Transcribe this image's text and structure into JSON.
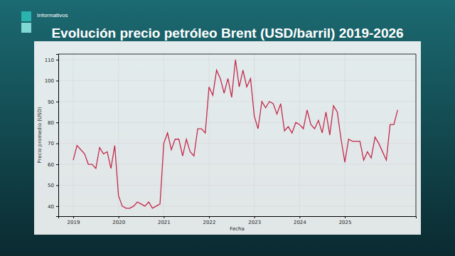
{
  "chart_data": {
    "type": "line",
    "title": "Evolución precio petróleo Brent (USD/barril) 2019-2026",
    "annotations": [
      "Informativos"
    ],
    "x_label": "Fecha",
    "y_label": "Precio promedio (USD)",
    "color": "#c42a4c",
    "grid": true,
    "xlim": [
      2018.67,
      2026.57
    ],
    "xticks": [
      2019,
      2020,
      2021,
      2022,
      2023,
      2024,
      2025
    ],
    "ylim": [
      35.2,
      112.7
    ],
    "yticks": [
      40,
      50,
      60,
      70,
      80,
      90,
      100,
      110
    ],
    "x": [
      2019.0,
      2019.083,
      2019.167,
      2019.25,
      2019.333,
      2019.417,
      2019.5,
      2019.583,
      2019.667,
      2019.75,
      2019.833,
      2019.917,
      2020.0,
      2020.083,
      2020.167,
      2020.25,
      2020.333,
      2020.417,
      2020.5,
      2020.583,
      2020.667,
      2020.75,
      2020.833,
      2020.917,
      2021.0,
      2021.083,
      2021.167,
      2021.25,
      2021.333,
      2021.417,
      2021.5,
      2021.583,
      2021.667,
      2021.75,
      2021.833,
      2021.917,
      2022.0,
      2022.083,
      2022.167,
      2022.25,
      2022.333,
      2022.417,
      2022.5,
      2022.583,
      2022.667,
      2022.75,
      2022.833,
      2022.917,
      2023.0,
      2023.083,
      2023.167,
      2023.25,
      2023.333,
      2023.417,
      2023.5,
      2023.583,
      2023.667,
      2023.75,
      2023.833,
      2023.917,
      2024.0,
      2024.083,
      2024.167,
      2024.25,
      2024.333,
      2024.417,
      2024.5,
      2024.583,
      2024.667,
      2024.75,
      2024.833,
      2024.917,
      2025.0,
      2025.083,
      2025.167,
      2025.25,
      2025.333,
      2025.417,
      2025.5,
      2025.583,
      2025.667,
      2025.75,
      2025.833,
      2025.917,
      2026.0,
      2026.083,
      2026.167
    ],
    "values": [
      62,
      69,
      67,
      65,
      60,
      60,
      58,
      68,
      65,
      66,
      58,
      69,
      45,
      40,
      39,
      39,
      40,
      42,
      41,
      40,
      42,
      39,
      40,
      41,
      70,
      75,
      67,
      72,
      72,
      64,
      72,
      66,
      64,
      77,
      77,
      75,
      97,
      93,
      105,
      101,
      94,
      101,
      92,
      110,
      97,
      105,
      97,
      101,
      83,
      77,
      90,
      87,
      90,
      89,
      84,
      89,
      76,
      78,
      75,
      80,
      79,
      77,
      86,
      79,
      77,
      81,
      75,
      85,
      74,
      88,
      85,
      72,
      61,
      72,
      71,
      71,
      71,
      62,
      66,
      63,
      73,
      70,
      66,
      62,
      79,
      79,
      86
    ]
  }
}
